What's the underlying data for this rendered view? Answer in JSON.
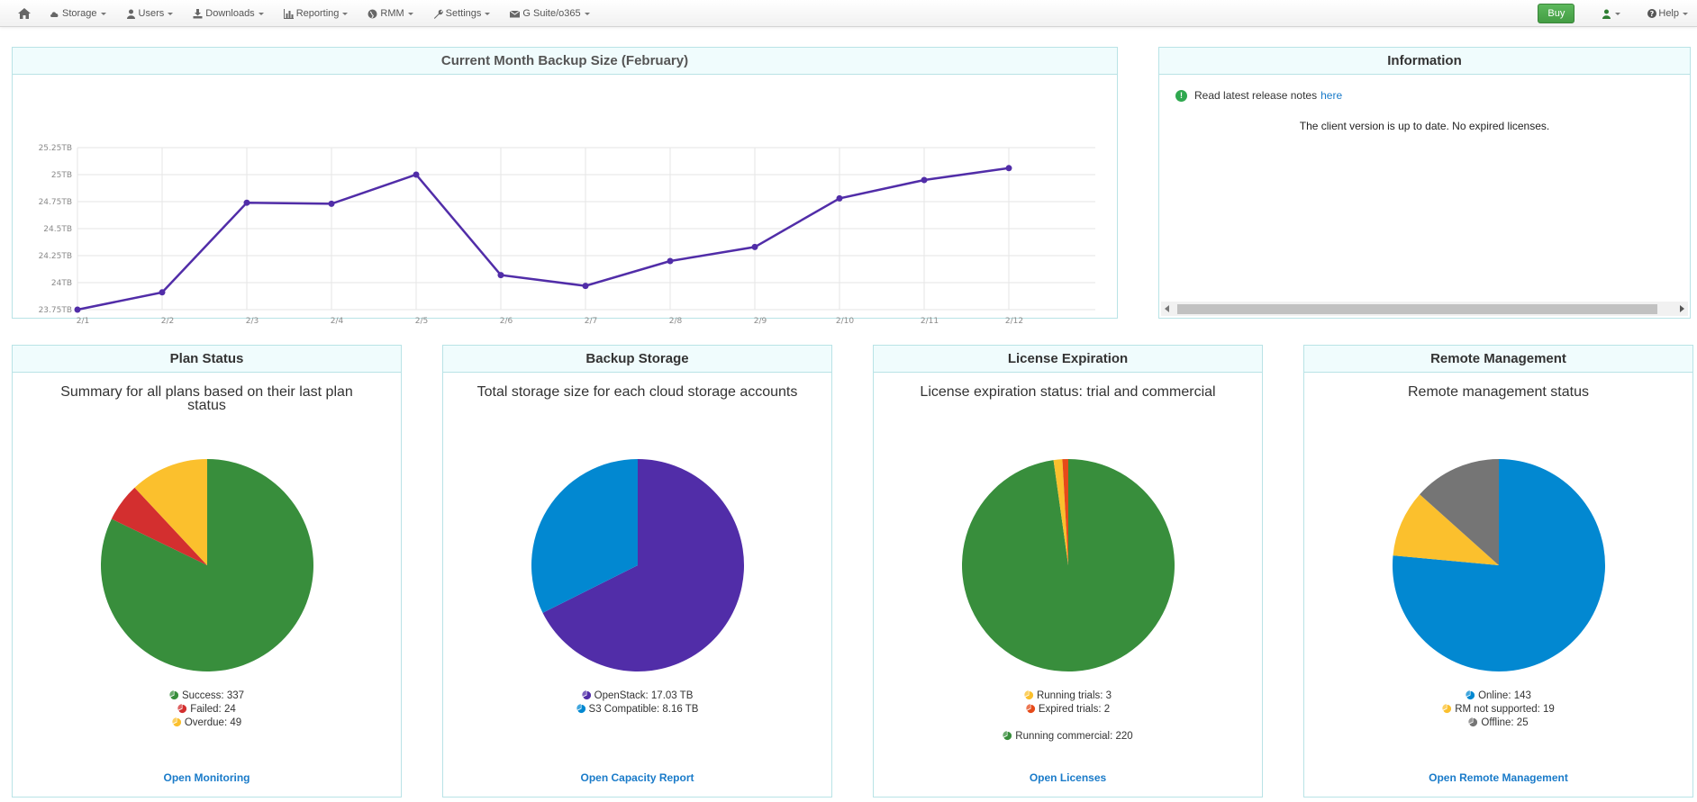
{
  "navbar": {
    "items": [
      {
        "label": "Storage",
        "icon": "cloud-icon"
      },
      {
        "label": "Users",
        "icon": "user-icon"
      },
      {
        "label": "Downloads",
        "icon": "download-icon"
      },
      {
        "label": "Reporting",
        "icon": "bar-chart-icon"
      },
      {
        "label": "RMM",
        "icon": "globe-icon"
      },
      {
        "label": "Settings",
        "icon": "wrench-icon"
      },
      {
        "label": "G Suite/o365",
        "icon": "envelope-icon"
      }
    ],
    "buy_label": "Buy",
    "help_label": "Help"
  },
  "backup_chart": {
    "heading": "Current Month Backup Size (February)",
    "chart_data": {
      "type": "line",
      "x": [
        "2/1",
        "2/2",
        "2/3",
        "2/4",
        "2/5",
        "2/6",
        "2/7",
        "2/8",
        "2/9",
        "2/10",
        "2/11",
        "2/12"
      ],
      "y_ticks": [
        "25.25TB",
        "25TB",
        "24.75TB",
        "24.5TB",
        "24.25TB",
        "24TB",
        "23.75TB"
      ],
      "ylim": [
        23.75,
        25.25
      ],
      "series": [
        {
          "values": [
            23.75,
            23.91,
            24.74,
            24.73,
            25.0,
            24.07,
            23.97,
            24.2,
            24.33,
            24.78,
            24.95,
            25.06
          ],
          "color": "#512da8"
        }
      ],
      "grid": true
    }
  },
  "information": {
    "heading": "Information",
    "release_text": "Read latest release notes",
    "release_link": "here",
    "status_text": "The client version is up to date. No expired licenses."
  },
  "plan_status": {
    "heading": "Plan Status",
    "subtitle": "Summary for all plans based on their last plan status",
    "chart_data": {
      "type": "pie",
      "slices": [
        {
          "label": "Success",
          "value": 337,
          "color": "#388e3c"
        },
        {
          "label": "Failed",
          "value": 24,
          "color": "#d32f2f"
        },
        {
          "label": "Overdue",
          "value": 49,
          "color": "#fbc02d"
        }
      ]
    },
    "legend": [
      "Success: 337",
      "Failed: 24",
      "Overdue: 49"
    ],
    "link": "Open Monitoring"
  },
  "backup_storage": {
    "heading": "Backup Storage",
    "subtitle": "Total storage size for each cloud storage accounts",
    "chart_data": {
      "type": "pie",
      "slices": [
        {
          "label": "OpenStack",
          "value": 17.03,
          "color": "#512da8"
        },
        {
          "label": "S3 Compatible",
          "value": 8.16,
          "color": "#0288d1"
        }
      ]
    },
    "legend": [
      "OpenStack: 17.03 TB",
      "S3 Compatible: 8.16 TB"
    ],
    "link": "Open Capacity Report"
  },
  "license_expiration": {
    "heading": "License Expiration",
    "subtitle": "License expiration status: trial and commercial",
    "chart_data": {
      "type": "pie",
      "slices": [
        {
          "label": "Running commercial",
          "value": 220,
          "color": "#388e3c"
        },
        {
          "label": "Running trials",
          "value": 3,
          "color": "#fbc02d"
        },
        {
          "label": "Expired trials",
          "value": 2,
          "color": "#e64a19"
        }
      ]
    },
    "legend": [
      "Running trials: 3",
      "Expired trials: 2",
      "Running commercial: 220"
    ],
    "link": "Open Licenses"
  },
  "remote_management": {
    "heading": "Remote Management",
    "subtitle": "Remote management status",
    "chart_data": {
      "type": "pie",
      "slices": [
        {
          "label": "Online",
          "value": 143,
          "color": "#0288d1"
        },
        {
          "label": "RM not supported",
          "value": 19,
          "color": "#fbc02d"
        },
        {
          "label": "Offline",
          "value": 25,
          "color": "#757575"
        }
      ]
    },
    "legend": [
      "Online: 143",
      "RM not supported: 19",
      "Offline: 25"
    ],
    "link": "Open Remote Management"
  }
}
